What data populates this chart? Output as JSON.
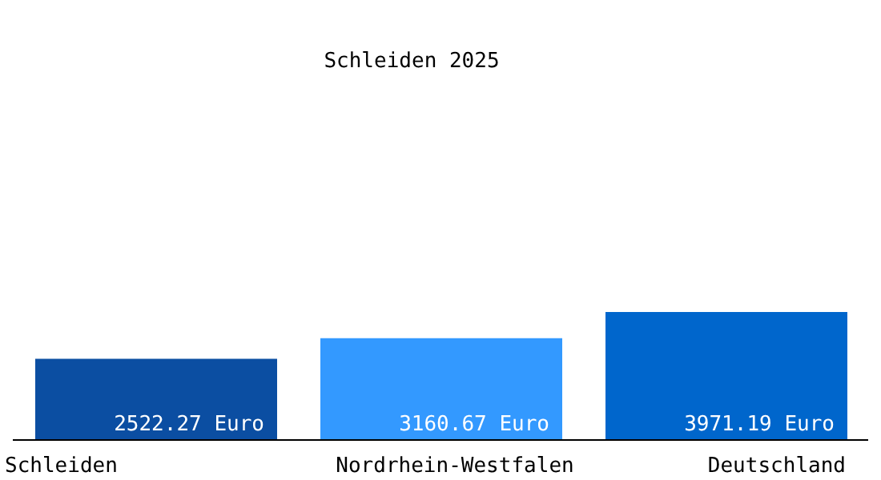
{
  "chart_data": {
    "type": "bar",
    "title": "Schleiden 2025",
    "categories": [
      "Schleiden",
      "Nordrhein-Westfalen",
      "Deutschland"
    ],
    "values": [
      2522.27,
      3160.67,
      3971.19
    ],
    "colors": [
      "#0b4ea2",
      "#3399ff",
      "#0066cc"
    ],
    "value_labels": [
      "2522.27 Euro",
      "3160.67 Euro",
      "3971.19 Euro"
    ],
    "grid": false,
    "legend": false
  }
}
